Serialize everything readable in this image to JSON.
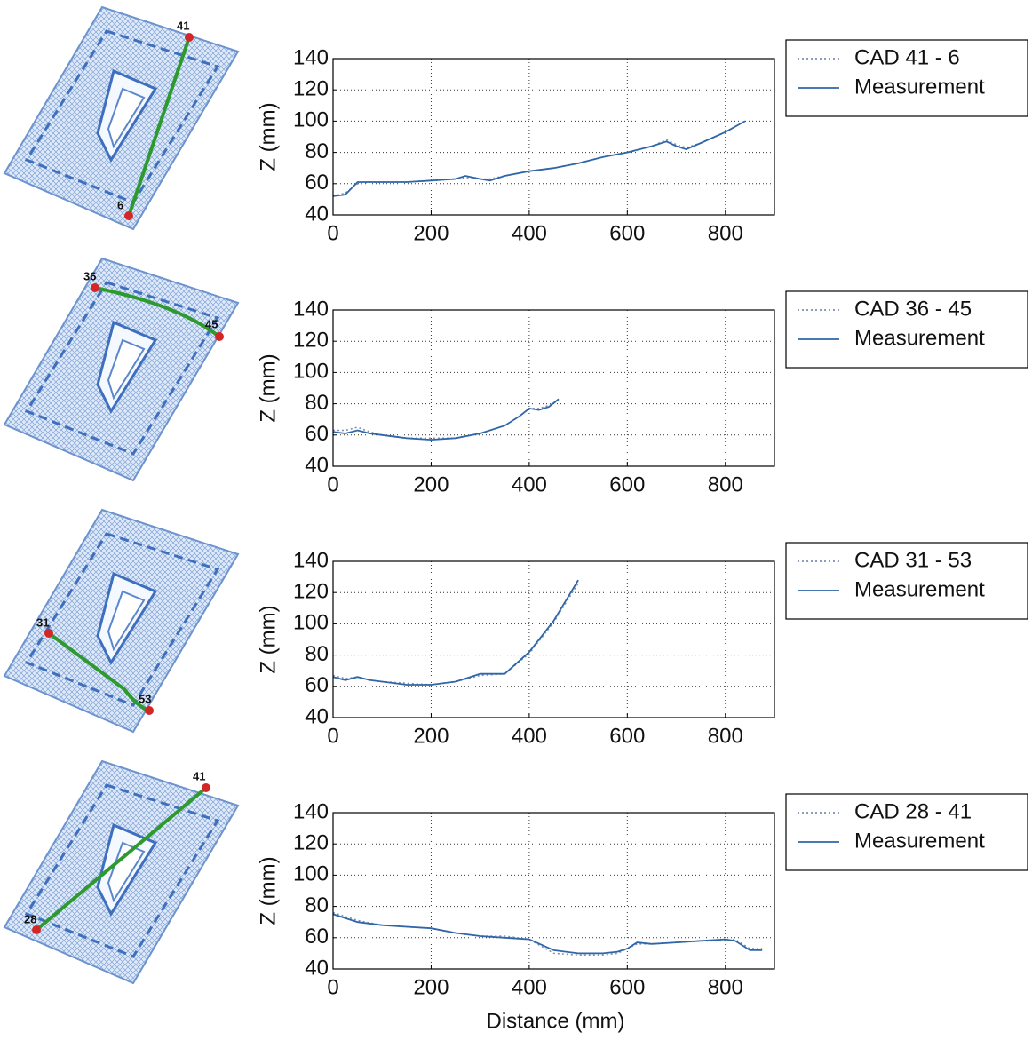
{
  "images": [
    {
      "points": [
        "41",
        "6"
      ]
    },
    {
      "points": [
        "36",
        "45"
      ]
    },
    {
      "points": [
        "31",
        "53"
      ]
    },
    {
      "points": [
        "41",
        "28"
      ]
    }
  ],
  "chart_data": [
    {
      "type": "line",
      "ylabel": "Z (mm)",
      "legend": "right",
      "grid": true,
      "xlim": [
        0,
        900
      ],
      "xticks": [
        0,
        200,
        400,
        600,
        800
      ],
      "ylim": [
        40,
        140
      ],
      "yticks": [
        40,
        60,
        80,
        100,
        120,
        140
      ],
      "x": [
        0,
        25,
        50,
        75,
        100,
        150,
        200,
        250,
        270,
        300,
        320,
        350,
        400,
        450,
        500,
        550,
        600,
        650,
        680,
        700,
        720,
        750,
        800,
        840
      ],
      "series": [
        {
          "name": "CAD 41 - 6",
          "color": "#7d8fb3",
          "linestyle": "dotted",
          "values": [
            52,
            54,
            60,
            61,
            61,
            61,
            62,
            63,
            64,
            63,
            63,
            65,
            68,
            70,
            73,
            77,
            80,
            84,
            88,
            85,
            83,
            86,
            93,
            100
          ]
        },
        {
          "name": "Measurement",
          "color": "#2f66a8",
          "linestyle": "solid",
          "values": [
            52,
            53,
            61,
            61,
            61,
            61,
            62,
            63,
            65,
            63,
            62,
            65,
            68,
            70,
            73,
            77,
            80,
            84,
            87,
            84,
            82,
            86,
            93,
            100
          ]
        }
      ]
    },
    {
      "type": "line",
      "ylabel": "Z (mm)",
      "legend": "right",
      "grid": true,
      "xlim": [
        0,
        900
      ],
      "xticks": [
        0,
        200,
        400,
        600,
        800
      ],
      "ylim": [
        40,
        140
      ],
      "yticks": [
        40,
        60,
        80,
        100,
        120,
        140
      ],
      "x": [
        0,
        25,
        50,
        75,
        100,
        150,
        200,
        250,
        300,
        350,
        380,
        400,
        420,
        440,
        460
      ],
      "series": [
        {
          "name": "CAD 36 - 45",
          "color": "#7d8fb3",
          "linestyle": "dotted",
          "values": [
            63,
            63,
            65,
            62,
            60,
            58,
            58,
            58,
            61,
            66,
            72,
            77,
            77,
            79,
            82
          ]
        },
        {
          "name": "Measurement",
          "color": "#2f66a8",
          "linestyle": "solid",
          "values": [
            62,
            61,
            63,
            61,
            60,
            58,
            57,
            58,
            61,
            66,
            72,
            77,
            76,
            78,
            83
          ]
        }
      ]
    },
    {
      "type": "line",
      "ylabel": "Z (mm)",
      "legend": "right",
      "grid": true,
      "xlim": [
        0,
        900
      ],
      "xticks": [
        0,
        200,
        400,
        600,
        800
      ],
      "ylim": [
        40,
        140
      ],
      "yticks": [
        40,
        60,
        80,
        100,
        120,
        140
      ],
      "x": [
        0,
        25,
        50,
        75,
        100,
        150,
        200,
        250,
        300,
        350,
        400,
        450,
        500
      ],
      "series": [
        {
          "name": "CAD 31 - 53",
          "color": "#7d8fb3",
          "linestyle": "dotted",
          "values": [
            67,
            65,
            66,
            64,
            63,
            62,
            61,
            63,
            67,
            68,
            81,
            101,
            126
          ]
        },
        {
          "name": "Measurement",
          "color": "#2f66a8",
          "linestyle": "solid",
          "values": [
            66,
            64,
            66,
            64,
            63,
            61,
            61,
            63,
            68,
            68,
            82,
            102,
            128
          ]
        }
      ]
    },
    {
      "type": "line",
      "ylabel": "Z (mm)",
      "xlabel": "Distance (mm)",
      "legend": "right",
      "grid": true,
      "xlim": [
        0,
        900
      ],
      "xticks": [
        0,
        200,
        400,
        600,
        800
      ],
      "ylim": [
        40,
        140
      ],
      "yticks": [
        40,
        60,
        80,
        100,
        120,
        140
      ],
      "x": [
        0,
        50,
        100,
        150,
        200,
        250,
        300,
        350,
        400,
        450,
        500,
        550,
        580,
        600,
        620,
        650,
        700,
        750,
        800,
        820,
        850,
        875
      ],
      "series": [
        {
          "name": "CAD 28 - 41",
          "color": "#7d8fb3",
          "linestyle": "dotted",
          "values": [
            76,
            71,
            68,
            67,
            66,
            63,
            61,
            61,
            59,
            50,
            49,
            49,
            50,
            53,
            56,
            56,
            57,
            58,
            58,
            59,
            53,
            53
          ]
        },
        {
          "name": "Measurement",
          "color": "#2f66a8",
          "linestyle": "solid",
          "values": [
            75,
            70,
            68,
            67,
            66,
            63,
            61,
            60,
            59,
            52,
            50,
            50,
            51,
            53,
            57,
            56,
            57,
            58,
            59,
            58,
            52,
            52
          ]
        }
      ]
    }
  ]
}
